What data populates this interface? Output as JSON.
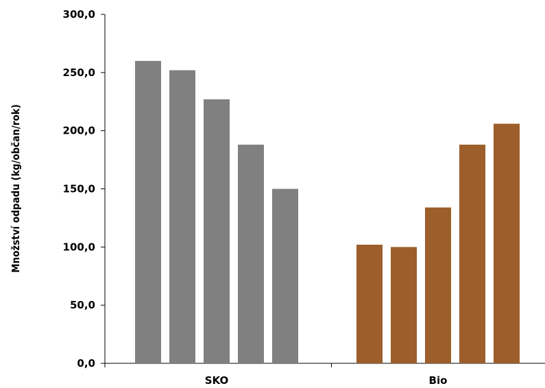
{
  "chart_data": {
    "type": "bar",
    "title": "",
    "xlabel": "",
    "ylabel": "Množství odpadu (kg/občan/rok)",
    "ylim": [
      0,
      300
    ],
    "yticks": [
      "0,0",
      "50,0",
      "100,0",
      "150,0",
      "200,0",
      "250,0",
      "300,0"
    ],
    "ytick_values": [
      0,
      50,
      100,
      150,
      200,
      250,
      300
    ],
    "grid": false,
    "legend": "none",
    "groups": [
      {
        "label": "SKO",
        "color": "#808080",
        "values": [
          260,
          252,
          227,
          188,
          150
        ]
      },
      {
        "label": "Bio",
        "color": "#9c5e2a",
        "values": [
          102,
          100,
          134,
          188,
          206
        ]
      }
    ]
  }
}
